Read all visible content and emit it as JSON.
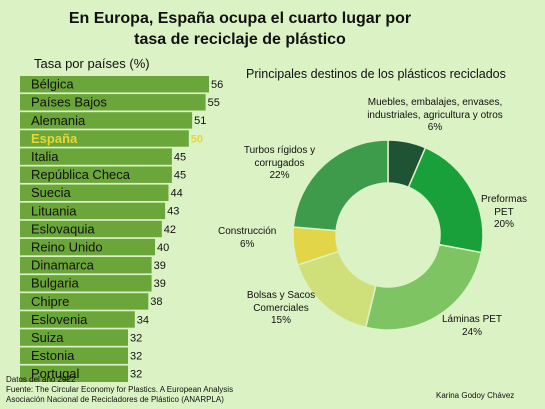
{
  "title": [
    "En Europa, España ocupa el cuarto lugar por",
    "tasa de reciclaje de plástico"
  ],
  "chart_data": [
    {
      "type": "bar",
      "orientation": "horizontal",
      "subtitle": "Tasa por países (%)",
      "categories": [
        "Bélgica",
        "Países Bajos",
        "Alemania",
        "España",
        "Italia",
        "República Checa",
        "Suecia",
        "Lituania",
        "Eslovaquia",
        "Reino Unido",
        "Dinamarca",
        "Bulgaria",
        "Chipre",
        "Eslovenia",
        "Suiza",
        "Estonia",
        "Portugal"
      ],
      "values": [
        56,
        55,
        51,
        50,
        45,
        45,
        44,
        43,
        42,
        40,
        39,
        39,
        38,
        34,
        32,
        32,
        32
      ],
      "highlight": "España",
      "bar_color": "#6ba63a",
      "highlight_color": "#e8d634",
      "xlim": [
        0,
        56
      ]
    },
    {
      "type": "pie",
      "donut": true,
      "title": "Principales destinos de los plásticos reciclados",
      "slices": [
        {
          "label": "Muebles, embalajes, envases, industriales, agricultura y otros",
          "value": 6,
          "text": "6%",
          "color": "#1e5434"
        },
        {
          "label": "Preformas PET",
          "value": 20,
          "text": "20%",
          "color": "#19a03a"
        },
        {
          "label": "Láminas PET",
          "value": 24,
          "text": "24%",
          "color": "#7fc463"
        },
        {
          "label": "Bolsas y Sacos Comerciales",
          "value": 15,
          "text": "15%",
          "color": "#cfe07a"
        },
        {
          "label": "Construcción",
          "value": 6,
          "text": "6%",
          "color": "#e2d548"
        },
        {
          "label": "Turbos rígidos y corrugados",
          "value": 22,
          "text": "22%",
          "color": "#3f9b4c"
        }
      ]
    }
  ],
  "footer": {
    "lines": [
      "Datos del año 2022",
      "Fuente: The Circular Economy for Plastics. A European Analysis",
      "Asociación Nacional de Recicladores de Plástico (ANARPLA)"
    ],
    "author": "Karina Godoy Chávez"
  }
}
